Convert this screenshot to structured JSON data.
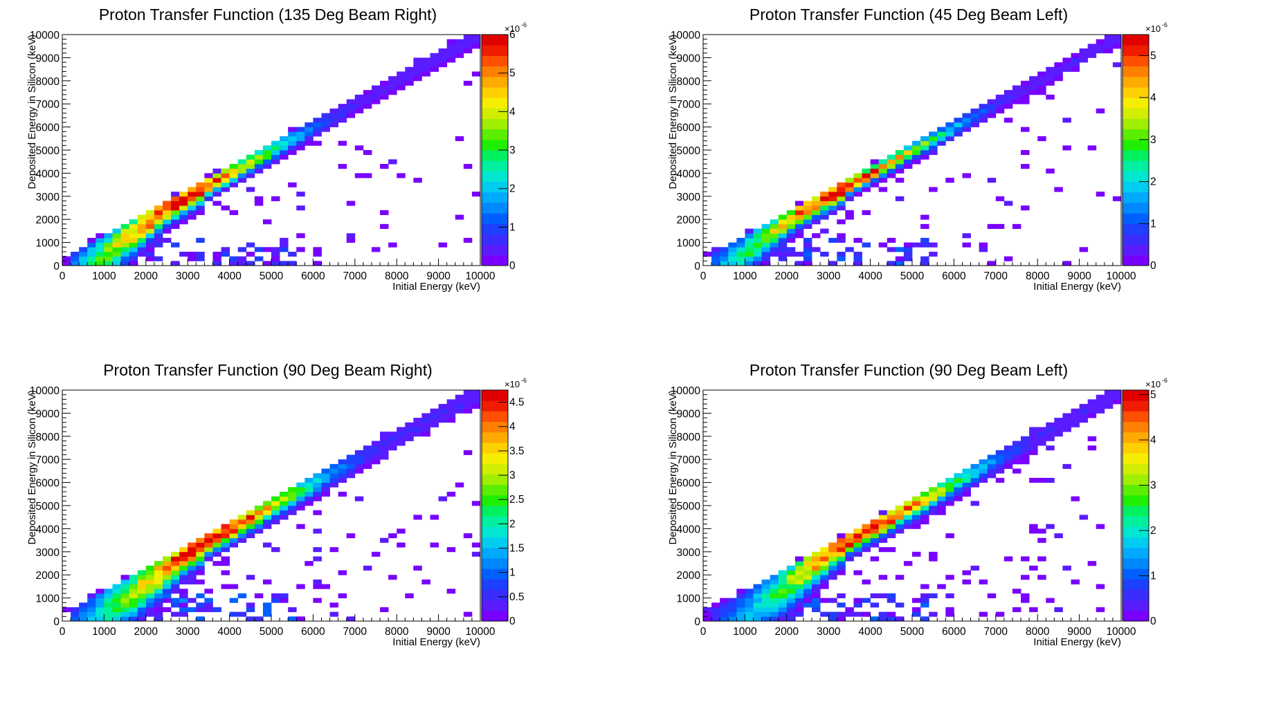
{
  "chart_data": [
    {
      "type": "heatmap",
      "title": "Proton Transfer Function (135 Deg Beam Right)",
      "xlabel": "Initial Energy (keV)",
      "ylabel": "Deposited Energy in Silicon (keV)",
      "xlim": [
        0,
        10000
      ],
      "ylim": [
        0,
        10000
      ],
      "xticks": [
        "0",
        "1000",
        "2000",
        "3000",
        "4000",
        "5000",
        "6000",
        "7000",
        "8000",
        "9000",
        "10000"
      ],
      "yticks": [
        "0",
        "1000",
        "2000",
        "3000",
        "4000",
        "5000",
        "6000",
        "7000",
        "8000",
        "9000",
        "10000"
      ],
      "bins": 50,
      "colorbar": {
        "min": 0,
        "max": 6,
        "ticks": [
          "0",
          "1",
          "2",
          "3",
          "4",
          "5",
          "6"
        ],
        "multiplier": "×10",
        "exponent": "-6"
      },
      "band": {
        "peak_center_keV": 3000,
        "peak_value": 5.6,
        "spread_bins": 1.3,
        "low_energy_loss_keV": 2500
      },
      "scatter_seed": 11,
      "scatter_count": 95
    },
    {
      "type": "heatmap",
      "title": "Proton Transfer Function (45 Deg Beam Left)",
      "xlabel": "Initial Energy (keV)",
      "ylabel": "Deposited Energy in Silicon (keV)",
      "xlim": [
        0,
        10000
      ],
      "ylim": [
        0,
        10000
      ],
      "xticks": [
        "0",
        "1000",
        "2000",
        "3000",
        "4000",
        "5000",
        "6000",
        "7000",
        "8000",
        "9000",
        "10000"
      ],
      "yticks": [
        "0",
        "1000",
        "2000",
        "3000",
        "4000",
        "5000",
        "6000",
        "7000",
        "8000",
        "9000",
        "10000"
      ],
      "bins": 50,
      "colorbar": {
        "min": 0,
        "max": 5.5,
        "ticks": [
          "0",
          "1",
          "2",
          "3",
          "4",
          "5"
        ],
        "multiplier": "×10",
        "exponent": "-6"
      },
      "band": {
        "peak_center_keV": 3400,
        "peak_value": 5.3,
        "spread_bins": 1.1,
        "low_energy_loss_keV": 2200
      },
      "scatter_seed": 29,
      "scatter_count": 85
    },
    {
      "type": "heatmap",
      "title": "Proton Transfer Function (90 Deg Beam Right)",
      "xlabel": "Initial Energy (keV)",
      "ylabel": "Deposited Energy in Silicon (keV)",
      "xlim": [
        0,
        10000
      ],
      "ylim": [
        0,
        10000
      ],
      "xticks": [
        "0",
        "1000",
        "2000",
        "3000",
        "4000",
        "5000",
        "6000",
        "7000",
        "8000",
        "9000",
        "10000"
      ],
      "yticks": [
        "0",
        "1000",
        "2000",
        "3000",
        "4000",
        "5000",
        "6000",
        "7000",
        "8000",
        "9000",
        "10000"
      ],
      "bins": 50,
      "colorbar": {
        "min": 0,
        "max": 4.75,
        "ticks": [
          "0",
          "0.5",
          "1",
          "1.5",
          "2",
          "2.5",
          "3",
          "3.5",
          "4",
          "4.5"
        ],
        "multiplier": "×10",
        "exponent": "-6"
      },
      "band": {
        "peak_center_keV": 3600,
        "peak_value": 4.6,
        "spread_bins": 1.7,
        "low_energy_loss_keV": 3000
      },
      "scatter_seed": 53,
      "scatter_count": 120
    },
    {
      "type": "heatmap",
      "title": "Proton Transfer Function (90 Deg Beam Left)",
      "xlabel": "Initial Energy (keV)",
      "ylabel": "Deposited Energy in Silicon (keV)",
      "xlim": [
        0,
        10000
      ],
      "ylim": [
        0,
        10000
      ],
      "xticks": [
        "0",
        "1000",
        "2000",
        "3000",
        "4000",
        "5000",
        "6000",
        "7000",
        "8000",
        "9000",
        "10000"
      ],
      "yticks": [
        "0",
        "1000",
        "2000",
        "3000",
        "4000",
        "5000",
        "6000",
        "7000",
        "8000",
        "9000",
        "10000"
      ],
      "bins": 50,
      "colorbar": {
        "min": 0,
        "max": 5.1,
        "ticks": [
          "0",
          "1",
          "2",
          "3",
          "4",
          "5"
        ],
        "multiplier": "×10",
        "exponent": "-6"
      },
      "band": {
        "peak_center_keV": 4000,
        "peak_value": 4.9,
        "spread_bins": 1.6,
        "low_energy_loss_keV": 3200
      },
      "scatter_seed": 77,
      "scatter_count": 130
    }
  ]
}
